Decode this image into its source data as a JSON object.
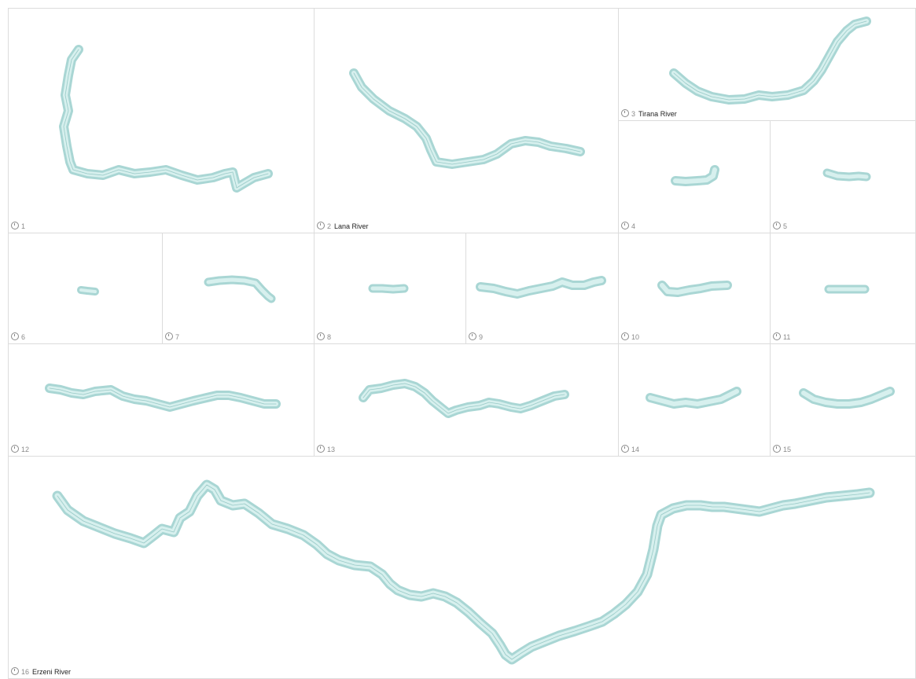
{
  "colors": {
    "river": "#a9d6d4",
    "river_light": "#d7f0ee",
    "river_line": "#7fb9b6",
    "border": "#dcdcdc",
    "caption": "#8a8a8a"
  },
  "panels": [
    {
      "number": "1",
      "name": ""
    },
    {
      "number": "2",
      "name": "Lana River"
    },
    {
      "number": "3",
      "name": "Tirana River"
    },
    {
      "number": "4",
      "name": ""
    },
    {
      "number": "5",
      "name": ""
    },
    {
      "number": "6",
      "name": ""
    },
    {
      "number": "7",
      "name": ""
    },
    {
      "number": "8",
      "name": ""
    },
    {
      "number": "9",
      "name": ""
    },
    {
      "number": "10",
      "name": ""
    },
    {
      "number": "11",
      "name": ""
    },
    {
      "number": "12",
      "name": ""
    },
    {
      "number": "13",
      "name": ""
    },
    {
      "number": "14",
      "name": ""
    },
    {
      "number": "15",
      "name": ""
    },
    {
      "number": "16",
      "name": "Erzeni River"
    }
  ]
}
